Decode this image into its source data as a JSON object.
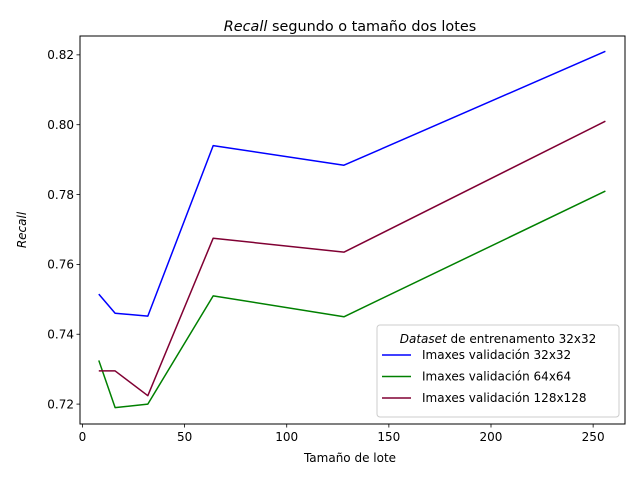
{
  "chart_data": {
    "type": "line",
    "title_italic": "Recall",
    "title_rest": " segundo o tamaño dos lotes",
    "xlabel": "Tamaño de lote",
    "ylabel": "Recall",
    "xlim": [
      -1.2,
      265.6
    ],
    "ylim": [
      0.7143,
      0.8254
    ],
    "x_ticks": [
      0,
      50,
      100,
      150,
      200,
      250
    ],
    "y_ticks": [
      0.72,
      0.74,
      0.76,
      0.78,
      0.8,
      0.82
    ],
    "x_tick_labels": [
      "0",
      "50",
      "100",
      "150",
      "200",
      "250"
    ],
    "y_tick_labels": [
      "0.72",
      "0.74",
      "0.76",
      "0.78",
      "0.80",
      "0.82"
    ],
    "x": [
      8,
      16,
      32,
      64,
      128,
      256
    ],
    "series": [
      {
        "name": "Imaxes validación 32x32",
        "color": "#0000ff",
        "values": [
          0.7515,
          0.746,
          0.7452,
          0.794,
          0.7884,
          0.821
        ]
      },
      {
        "name": "Imaxes validación 64x64",
        "color": "#008000",
        "values": [
          0.7325,
          0.719,
          0.72,
          0.751,
          0.745,
          0.781
        ]
      },
      {
        "name": "Imaxes validación 128x128",
        "color": "#800033",
        "values": [
          0.7295,
          0.7295,
          0.7224,
          0.7675,
          0.7635,
          0.801
        ]
      }
    ],
    "legend": {
      "title_italic": "Dataset",
      "title_rest": " de entrenamento 32x32",
      "position": "lower-right"
    },
    "grid": false
  }
}
